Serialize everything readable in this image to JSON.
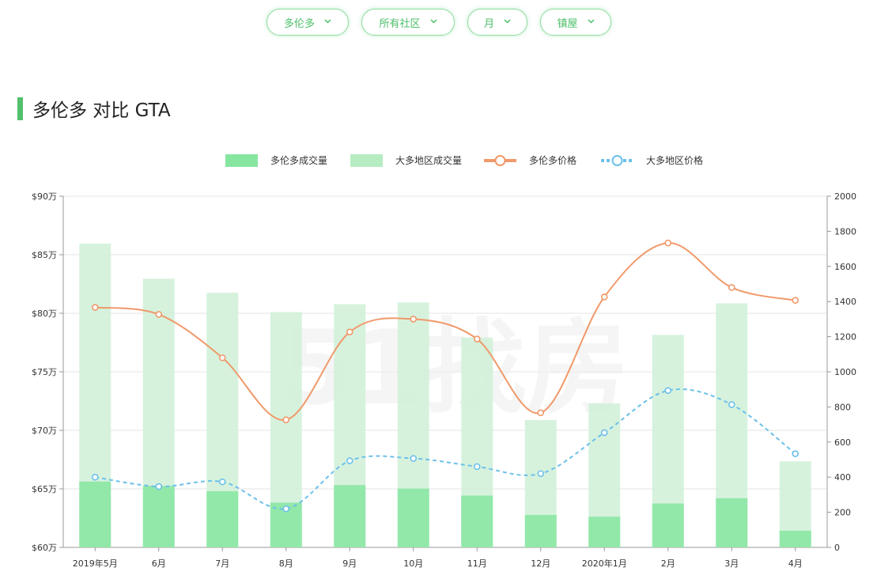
{
  "filters": [
    {
      "label": "多伦多",
      "icon": "chevron-down-icon"
    },
    {
      "label": "所有社区",
      "icon": "chevron-down-icon"
    },
    {
      "label": "月",
      "icon": "chevron-down-icon"
    },
    {
      "label": "镇屋",
      "icon": "chevron-down-icon"
    }
  ],
  "section_title": "多伦多 对比 GTA",
  "watermark": "51找房",
  "colors": {
    "accent": "#52c06d",
    "bar_toronto": "#86e6a0",
    "bar_gta": "#d2f1d9",
    "line_toronto": "#f0996a",
    "line_gta": "#6cc0ea"
  },
  "chart_data": {
    "type": "bar",
    "legend_position": "top-center",
    "grid": true,
    "categories": [
      "2019年5月",
      "6月",
      "7月",
      "8月",
      "9月",
      "10月",
      "11月",
      "12月",
      "2020年1月",
      "2月",
      "3月",
      "4月"
    ],
    "y_left": {
      "ticks": [
        "$60万",
        "$65万",
        "$70万",
        "$75万",
        "$80万",
        "$85万",
        "$90万"
      ],
      "range": [
        60,
        90
      ],
      "unit": "万"
    },
    "y_right": {
      "ticks": [
        "0",
        "200",
        "400",
        "600",
        "800",
        "1000",
        "1200",
        "1400",
        "1600",
        "1800",
        "2000"
      ],
      "range": [
        0,
        2000
      ]
    },
    "series": [
      {
        "name": "多伦多成交量",
        "kind": "bar",
        "axis": "right",
        "values": [
          375,
          350,
          320,
          255,
          355,
          335,
          295,
          185,
          175,
          250,
          280,
          95
        ]
      },
      {
        "name": "大多地区成交量",
        "kind": "bar",
        "axis": "right",
        "values": [
          1730,
          1530,
          1450,
          1340,
          1385,
          1395,
          1195,
          725,
          820,
          1210,
          1390,
          490
        ]
      },
      {
        "name": "多伦多价格",
        "kind": "line",
        "axis": "left",
        "style": "solid",
        "values": [
          80.5,
          79.9,
          76.2,
          70.9,
          78.4,
          79.5,
          77.8,
          71.5,
          81.4,
          86.0,
          82.2,
          81.1
        ]
      },
      {
        "name": "大多地区价格",
        "kind": "line",
        "axis": "left",
        "style": "dashed",
        "values": [
          66.0,
          65.2,
          65.6,
          63.3,
          67.4,
          67.6,
          66.9,
          66.3,
          69.8,
          73.4,
          72.2,
          68.0
        ]
      }
    ]
  }
}
